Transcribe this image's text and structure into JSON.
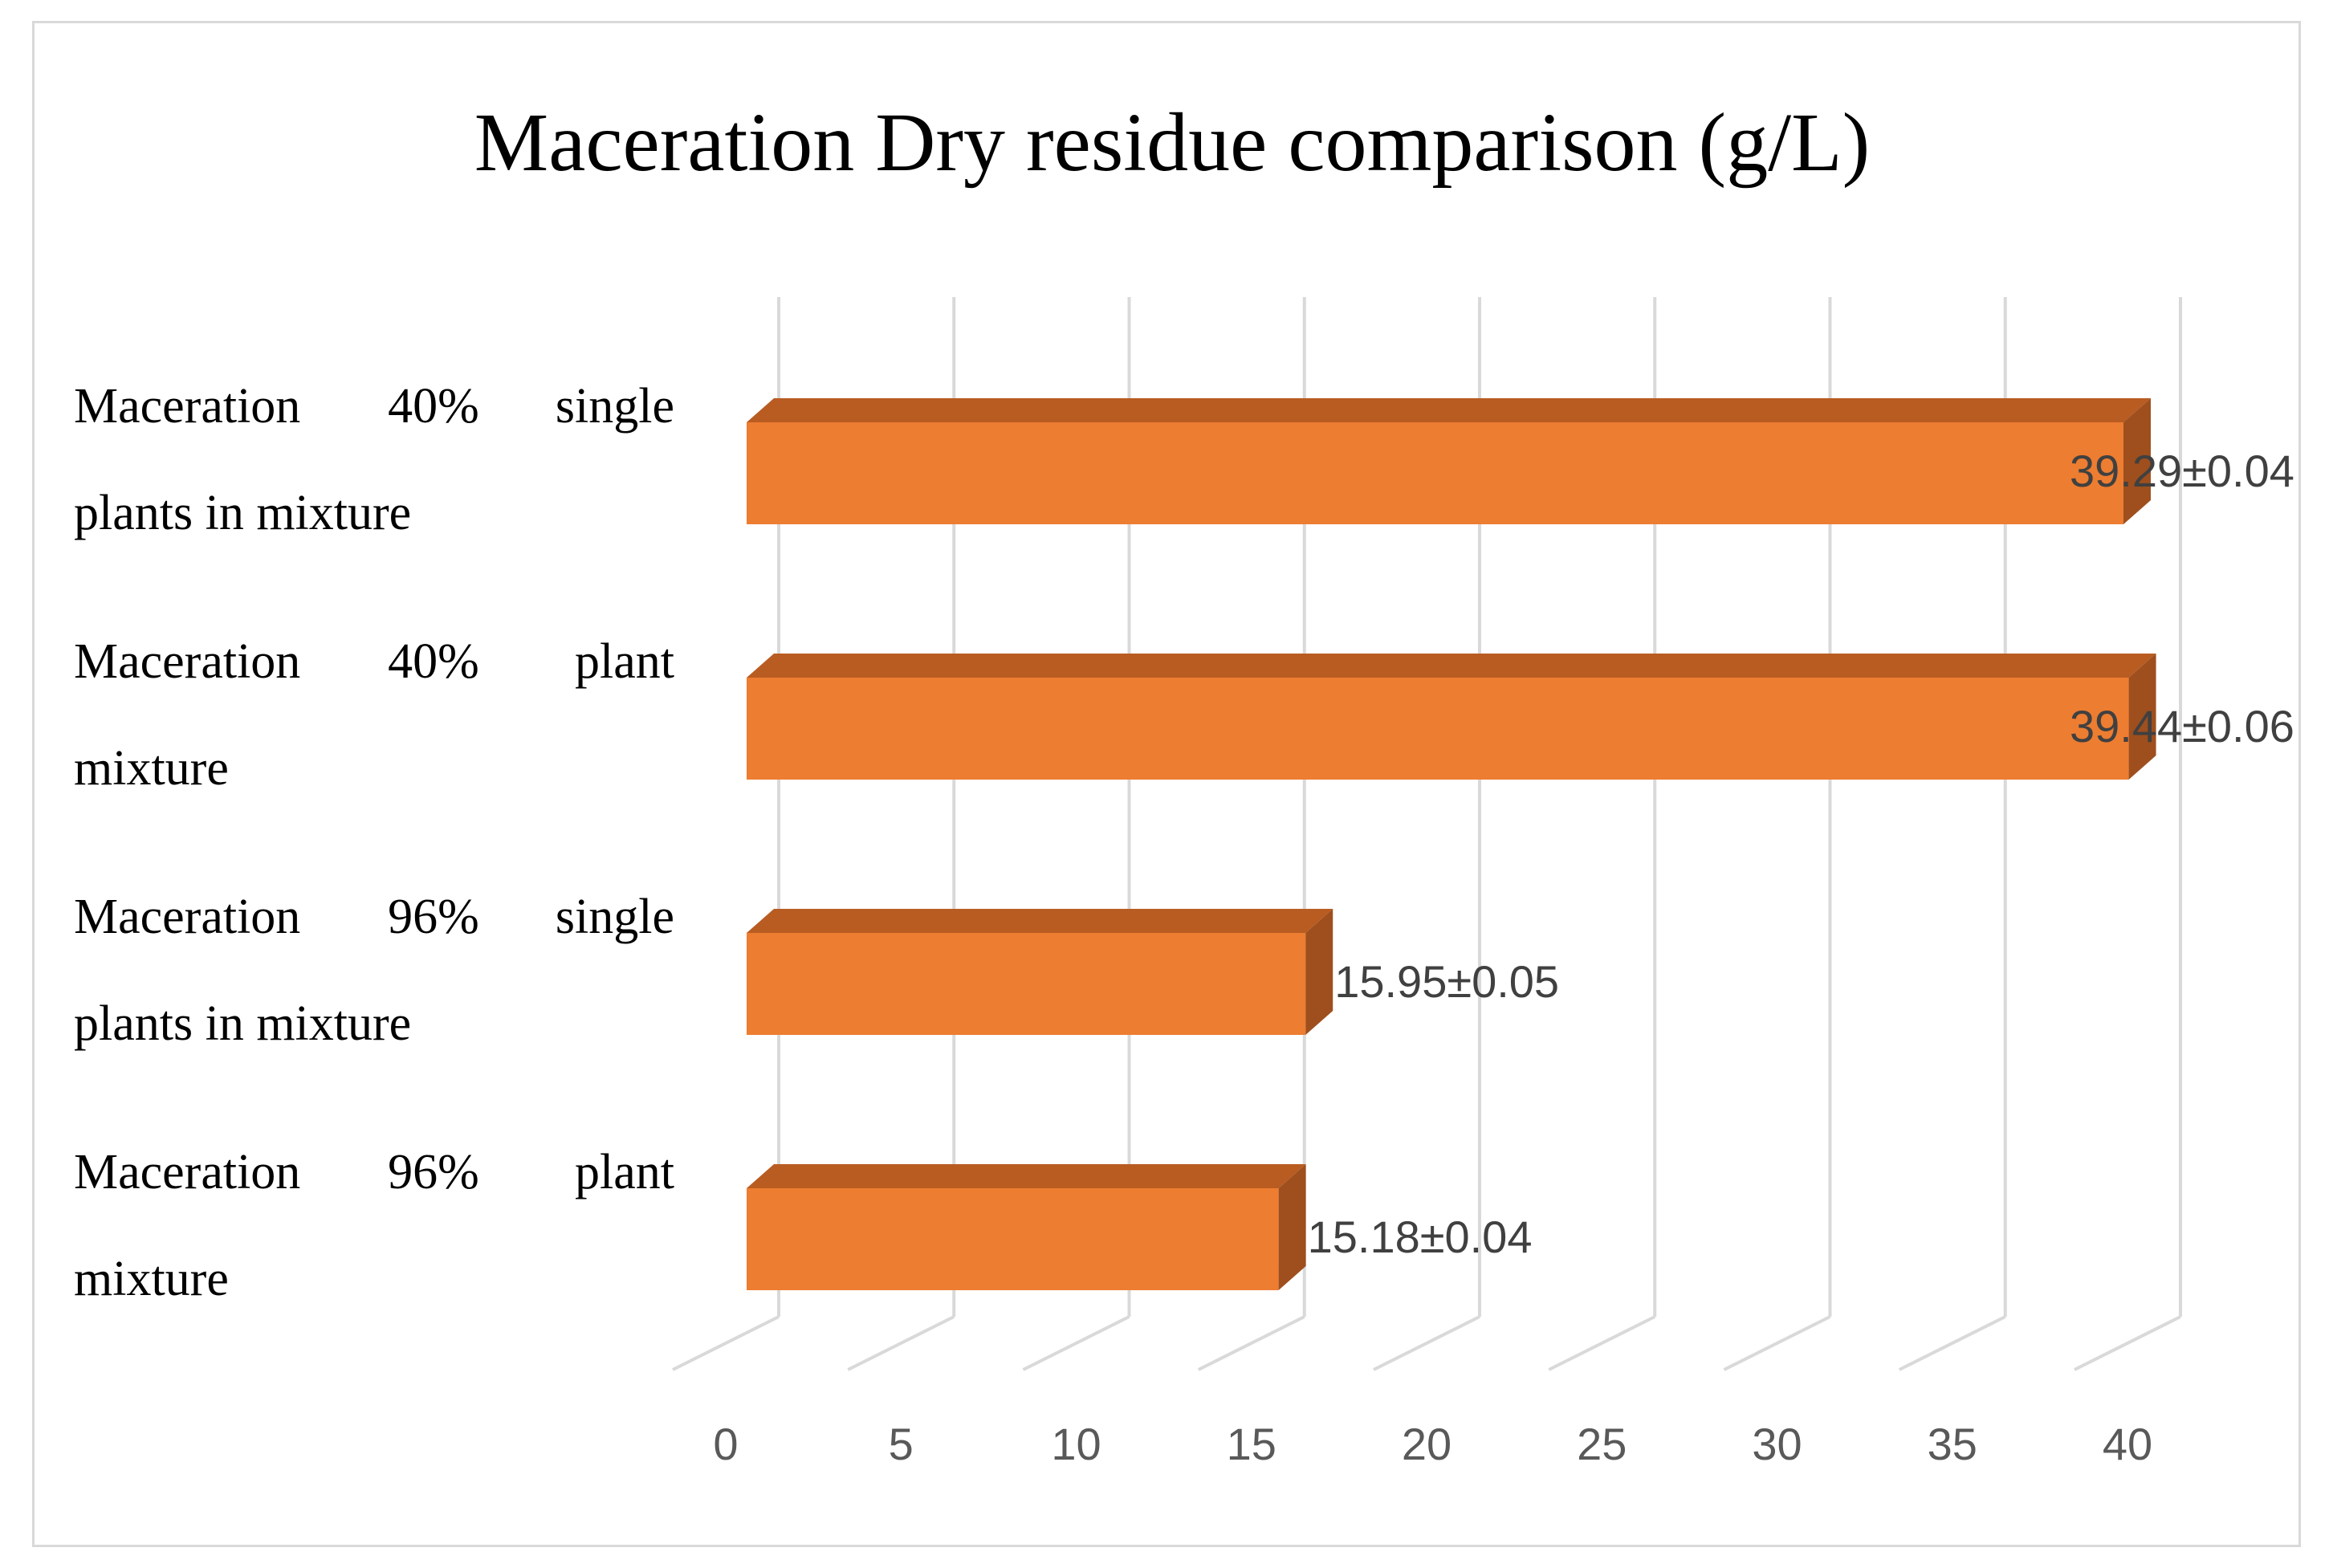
{
  "chart_data": {
    "type": "bar",
    "orientation": "horizontal",
    "style": "3d",
    "title": "Maceration Dry residue comparison (g/L)",
    "xlabel": "",
    "ylabel": "",
    "categories": [
      {
        "line1": [
          "Maceration",
          "40%",
          "single"
        ],
        "line2": "plants in mixture"
      },
      {
        "line1": [
          "Maceration",
          "40%",
          "plant"
        ],
        "line2": "mixture"
      },
      {
        "line1": [
          "Maceration",
          "96%",
          "single"
        ],
        "line2": "plants in mixture"
      },
      {
        "line1": [
          "Maceration",
          "96%",
          "plant"
        ],
        "line2": "mixture"
      }
    ],
    "values": [
      39.29,
      39.44,
      15.95,
      15.18
    ],
    "data_labels": [
      "39.29±0.04",
      "39.44±0.06",
      "15.95±0.05",
      "15.18±0.04"
    ],
    "xlim": [
      0,
      40
    ],
    "ticks": [
      "0",
      "5",
      "10",
      "15",
      "20",
      "25",
      "30",
      "35",
      "40"
    ],
    "grid": true,
    "legend": "none",
    "colors": {
      "bar_front": "#ED7D31",
      "bar_top": "#B95C22",
      "bar_side": "#9E4F1D",
      "grid": "#D9D9D9",
      "frame": "#D9D9D9"
    }
  }
}
